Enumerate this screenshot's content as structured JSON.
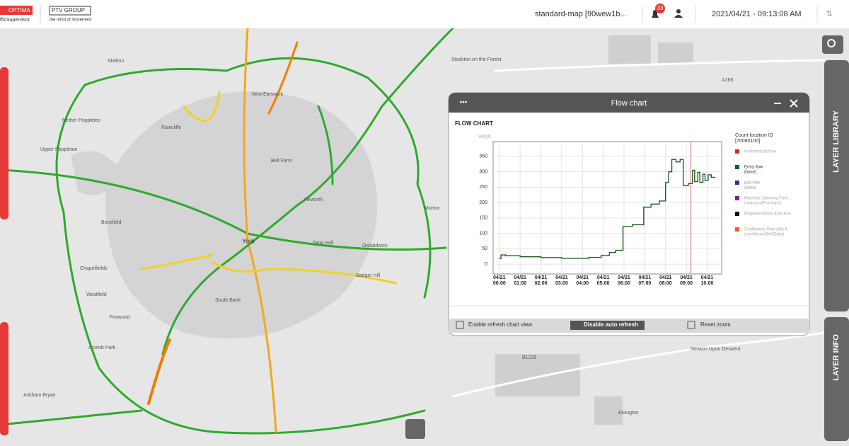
{
  "header": {
    "brand": "OPTIMA",
    "brand_sub": "fficSupervisor",
    "group": "PTV GROUP",
    "group_sub": "the mind of movement",
    "map_name": "standard-map [90wew1b...",
    "notifications": "33",
    "datetime": "2021/04/21 - 09:13:08 AM"
  },
  "side_tabs": [
    "LAYER LIBRARY",
    "LAYER INFO"
  ],
  "map_labels": [
    "Skelton",
    "Stockton on the Forest",
    "New Earswick",
    "Nether Poppleton",
    "Rawcliffe",
    "Upper Poppleton",
    "Bell Farm",
    "Heworth",
    "Murton",
    "Beckfield",
    "York",
    "Osbaldwick",
    "Tang Hall",
    "Chapelfields",
    "Westfield",
    "Foxwood",
    "Acomb Park",
    "Askham Bryan",
    "South Bank",
    "Badger Hill",
    "Elvington",
    "Newton Upon Derwent",
    "A166",
    "B1228"
  ],
  "panel": {
    "title": "Flow chart",
    "buttons": [
      "Enable refresh chart view",
      "Disable auto refresh",
      "Reset zoom"
    ]
  },
  "chart_data": {
    "type": "line",
    "title": "FLOW CHART",
    "y_label": "Veh/h",
    "legend_title": "Count location ID",
    "legend_subtitle": "[70080100]",
    "xlim": [
      -0.3,
      10.7
    ],
    "ylim": [
      -32,
      398
    ],
    "xticks": [
      {
        "value": 0,
        "label": "04/21 00:00"
      },
      {
        "value": 1,
        "label": "04/21 01:00"
      },
      {
        "value": 2,
        "label": "04/21 02:00"
      },
      {
        "value": 3,
        "label": "04/21 03:00"
      },
      {
        "value": 4,
        "label": "04/21 04:00"
      },
      {
        "value": 5,
        "label": "04/21 05:00"
      },
      {
        "value": 6,
        "label": "04/21 06:00"
      },
      {
        "value": 7,
        "label": "04/21 07:00"
      },
      {
        "value": 8,
        "label": "04/21 08:00"
      },
      {
        "value": 9,
        "label": "04/21 09:00"
      },
      {
        "value": 10,
        "label": "04/21 10:00"
      }
    ],
    "yticks": [
      0,
      50,
      100,
      150,
      200,
      250,
      300,
      350
    ],
    "grid": true,
    "reference_line": {
      "x": 9.22,
      "color": "#e57373"
    },
    "series": [
      {
        "name": "Harmonized flow",
        "color": "#d32f2f",
        "enabled": false,
        "x": [],
        "values": []
      },
      {
        "name": "Entry flow",
        "sub": "(base)",
        "color": "#1b5e20",
        "enabled": true,
        "x": [
          0,
          0.08,
          0.08,
          0.3,
          0.3,
          1.0,
          1.0,
          2.0,
          2.0,
          3.0,
          3.0,
          4.3,
          4.3,
          4.9,
          4.9,
          5.3,
          5.3,
          5.6,
          5.6,
          5.95,
          5.95,
          6.4,
          6.4,
          6.95,
          6.95,
          7.3,
          7.3,
          7.7,
          7.7,
          8.0,
          8.0,
          8.15,
          8.15,
          8.3,
          8.3,
          8.5,
          8.5,
          8.7,
          8.7,
          8.85,
          8.85,
          9.1,
          9.1,
          9.3,
          9.3,
          9.4,
          9.4,
          9.55,
          9.55,
          9.65,
          9.65,
          9.8,
          9.8,
          9.9,
          9.9,
          10.05,
          10.05,
          10.2,
          10.2,
          10.4
        ],
        "values": [
          18,
          18,
          30,
          30,
          27,
          27,
          24,
          24,
          21,
          21,
          19,
          19,
          22,
          22,
          28,
          28,
          38,
          38,
          45,
          45,
          122,
          122,
          128,
          128,
          185,
          185,
          195,
          195,
          205,
          205,
          265,
          265,
          300,
          300,
          340,
          340,
          332,
          332,
          340,
          340,
          255,
          255,
          262,
          262,
          305,
          305,
          268,
          268,
          298,
          298,
          265,
          265,
          292,
          292,
          272,
          272,
          290,
          290,
          282,
          282
        ]
      },
      {
        "name": "Exit flow",
        "sub": "(base)",
        "color": "#283593",
        "enabled": false,
        "struck": true,
        "x": [],
        "values": []
      },
      {
        "name": "Machine Learning Fore...",
        "sub": "(statisticalForecast)",
        "color": "#7b1fa2",
        "enabled": false,
        "x": [],
        "values": []
      },
      {
        "name": "Representative data flow",
        "color": "#000000",
        "enabled": false,
        "x": [],
        "values": []
      },
      {
        "name": "Confidence Belt data fl...",
        "sub": "(confidenceBeltData)",
        "color": "#ff5722",
        "enabled": false,
        "x": [],
        "values": []
      }
    ]
  }
}
